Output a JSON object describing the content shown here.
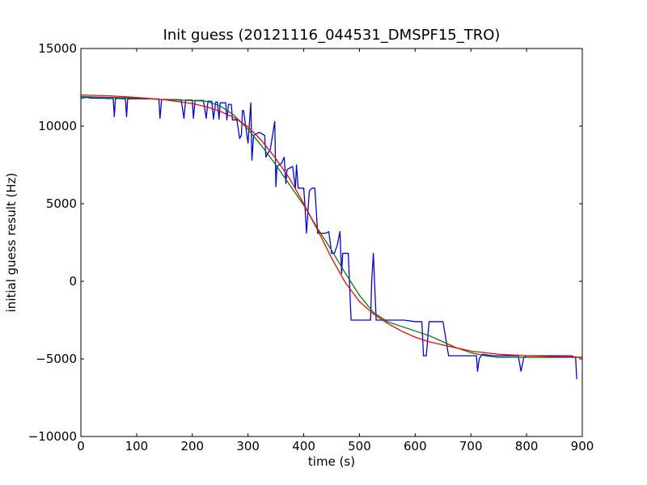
{
  "chart_data": {
    "type": "line",
    "title": "Init guess (20121116_044531_DMSPF15_TRO)",
    "xlabel": "time (s)",
    "ylabel": "initial guess result (Hz)",
    "xlim": [
      0,
      900
    ],
    "ylim": [
      -10000,
      15000
    ],
    "xticks": [
      0,
      100,
      200,
      300,
      400,
      500,
      600,
      700,
      800,
      900
    ],
    "yticks": [
      -10000,
      -5000,
      0,
      5000,
      10000,
      15000
    ],
    "xtick_labels": [
      "0",
      "100",
      "200",
      "300",
      "400",
      "500",
      "600",
      "700",
      "800",
      "900"
    ],
    "ytick_labels": [
      "−10000",
      "−5000",
      "0",
      "5000",
      "10000",
      "15000"
    ],
    "grid": false,
    "legend": "none",
    "series": [
      {
        "color": "#0000ff",
        "x": [
          0,
          10,
          20,
          30,
          40,
          50,
          58,
          60,
          62,
          70,
          80,
          82,
          84,
          100,
          120,
          140,
          142,
          145,
          150,
          180,
          185,
          188,
          200,
          202,
          205,
          220,
          225,
          228,
          235,
          238,
          242,
          245,
          248,
          250,
          260,
          262,
          265,
          270,
          272,
          280,
          285,
          288,
          290,
          292,
          300,
          305,
          307,
          310,
          320,
          330,
          332,
          335,
          340,
          348,
          350,
          352,
          360,
          365,
          368,
          370,
          380,
          385,
          387,
          390,
          395,
          400,
          402,
          405,
          410,
          412,
          415,
          420,
          425,
          430,
          440,
          445,
          450,
          452,
          455,
          460,
          465,
          468,
          470,
          472,
          475,
          480,
          485,
          490,
          500,
          510,
          520,
          522,
          525,
          530,
          540,
          550,
          560,
          580,
          600,
          610,
          612,
          615,
          620,
          625,
          630,
          640,
          650,
          660,
          680,
          700,
          710,
          712,
          715,
          720,
          740,
          760,
          780,
          785,
          790,
          795,
          800,
          820,
          840,
          860,
          880,
          888,
          890
        ],
        "y": [
          11800,
          11850,
          11800,
          11800,
          11800,
          11780,
          11780,
          10600,
          11780,
          11780,
          11760,
          10600,
          11760,
          11760,
          11750,
          11750,
          10500,
          11720,
          11720,
          11700,
          10500,
          11680,
          11680,
          10500,
          11650,
          11650,
          10500,
          11600,
          11600,
          10450,
          11550,
          11550,
          10450,
          11500,
          11500,
          10400,
          11400,
          11400,
          10400,
          10400,
          9200,
          9400,
          11000,
          11000,
          8900,
          11500,
          7800,
          9400,
          9600,
          9400,
          8000,
          8200,
          8500,
          10300,
          6100,
          7400,
          7600,
          8000,
          6300,
          7200,
          7400,
          6000,
          7500,
          6000,
          6000,
          6000,
          5000,
          3100,
          5800,
          5900,
          6000,
          6000,
          3100,
          3100,
          3100,
          3200,
          1800,
          1800,
          1800,
          2300,
          3200,
          500,
          1800,
          1800,
          1800,
          1800,
          -2500,
          -2500,
          -2500,
          -2500,
          -2500,
          0,
          1800,
          -2500,
          -2500,
          -2500,
          -2500,
          -2500,
          -2600,
          -2600,
          -2600,
          -4800,
          -4800,
          -2600,
          -2600,
          -2600,
          -2600,
          -4800,
          -4800,
          -4800,
          -4800,
          -5800,
          -5000,
          -4700,
          -4800,
          -4800,
          -4800,
          -4800,
          -5800,
          -4900,
          -4800,
          -4800,
          -4800,
          -4800,
          -4800,
          -4900,
          -6300
        ]
      },
      {
        "color": "#008000",
        "x": [
          0,
          50,
          100,
          150,
          200,
          225,
          250,
          275,
          300,
          325,
          350,
          375,
          400,
          425,
          450,
          475,
          500,
          525,
          550,
          575,
          600,
          625,
          650,
          675,
          700,
          725,
          750,
          800,
          850,
          900
        ],
        "y": [
          11900,
          11850,
          11800,
          11700,
          11650,
          11600,
          11300,
          10700,
          9800,
          8700,
          7500,
          6200,
          4900,
          3400,
          2000,
          500,
          -900,
          -2000,
          -2600,
          -2900,
          -3200,
          -3500,
          -3900,
          -4300,
          -4600,
          -4800,
          -4900,
          -4900,
          -4900,
          -4900
        ]
      },
      {
        "color": "#ff0000",
        "x": [
          0,
          50,
          100,
          150,
          200,
          225,
          250,
          275,
          300,
          325,
          350,
          375,
          400,
          425,
          450,
          475,
          500,
          525,
          550,
          575,
          600,
          625,
          650,
          675,
          700,
          750,
          800,
          850,
          900
        ],
        "y": [
          12000,
          11950,
          11850,
          11700,
          11450,
          11250,
          10950,
          10550,
          9950,
          9050,
          7900,
          6600,
          5000,
          3300,
          1500,
          -100,
          -1300,
          -2100,
          -2700,
          -3200,
          -3600,
          -3900,
          -4100,
          -4300,
          -4500,
          -4700,
          -4800,
          -4850,
          -4900
        ]
      }
    ]
  }
}
